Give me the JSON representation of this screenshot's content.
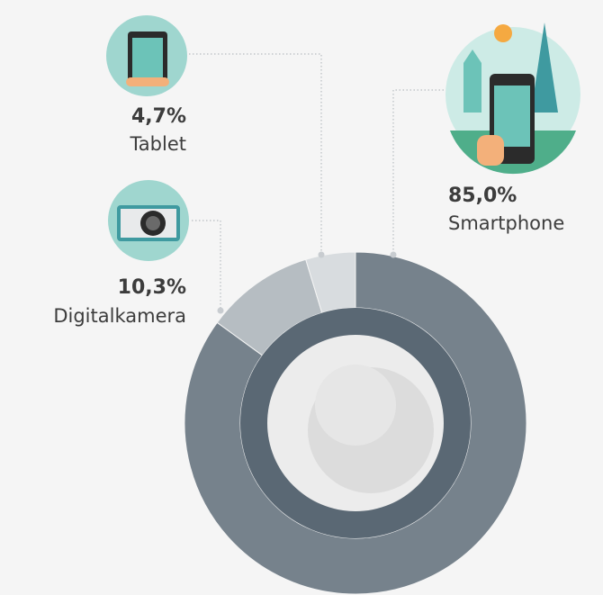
{
  "chart_data": {
    "type": "pie",
    "donut": true,
    "categories": [
      "Smartphone",
      "Digitalkamera",
      "Tablet"
    ],
    "values": [
      85.0,
      10.3,
      4.7
    ],
    "value_labels": [
      "85,0%",
      "10,3%",
      "4,7%"
    ],
    "colors": [
      "#76828c",
      "#b6bdc2",
      "#d8dcdf"
    ]
  }
}
